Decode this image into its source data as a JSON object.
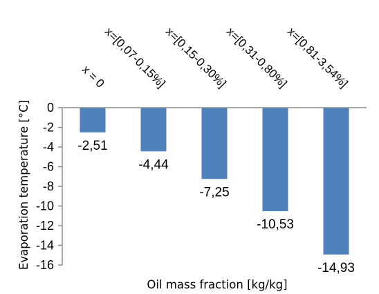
{
  "chart_data": {
    "type": "bar",
    "categories": [
      "x = 0",
      "x=[0,07-0,15%]",
      "x=[0,15-0,30%]",
      "x=[0,31-0,80%]",
      "x=[0,81-3,54%]"
    ],
    "values": [
      -2.51,
      -4.44,
      -7.25,
      -10.53,
      -14.93
    ],
    "data_labels": [
      "-2,51",
      "-4,44",
      "-7,25",
      "-10,53",
      "-14,93"
    ],
    "y_ticks": [
      "0",
      "-2",
      "-4",
      "-6",
      "-8",
      "-10",
      "-12",
      "-14",
      "-16"
    ],
    "title": "",
    "xlabel": "Oil mass fraction [kg/kg]",
    "ylabel": "Evaporation temperature [°C]",
    "ylim": [
      -16,
      0
    ],
    "grid": false,
    "legend": "none",
    "colors": {
      "bar": "#4f81bd",
      "axis": "#8c8c8c"
    }
  }
}
